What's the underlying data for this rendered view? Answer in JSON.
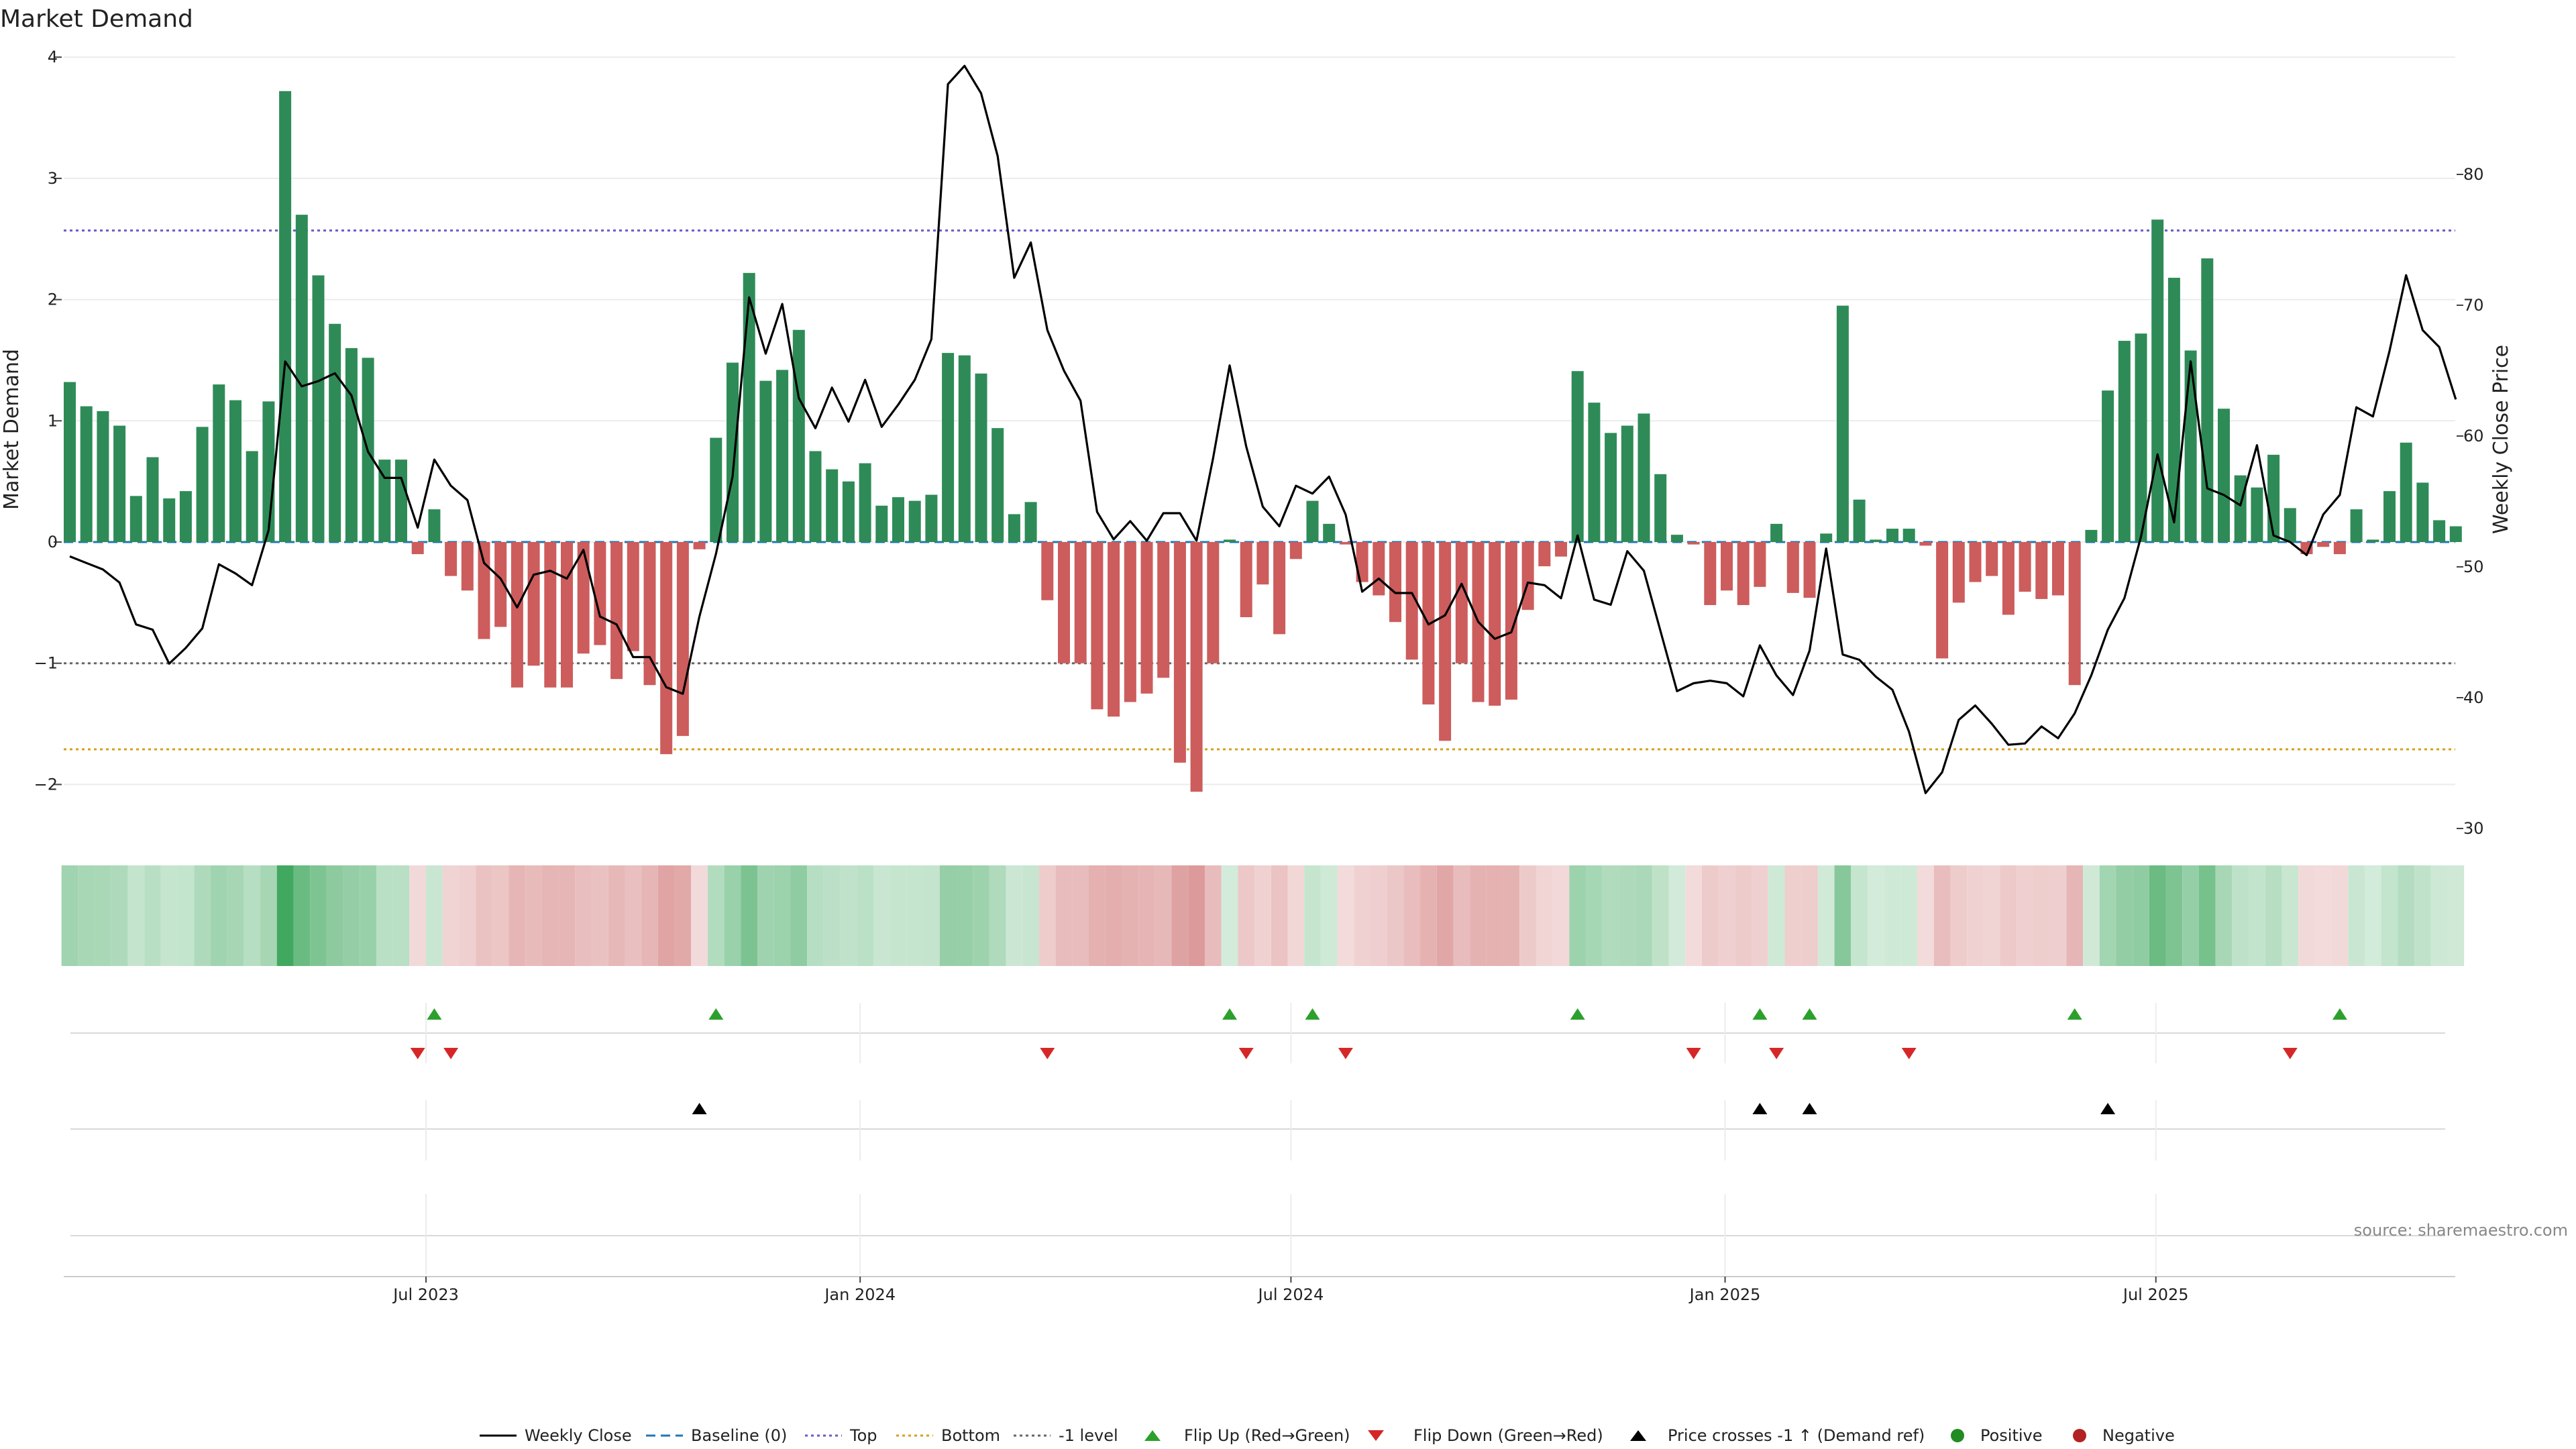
{
  "chart_data": {
    "type": "bar+line",
    "title": "Market Demand",
    "ylabel_left": "Market Demand",
    "ylabel_right": "Weekly Close Price",
    "ylim_left": [
      -2.35,
      4
    ],
    "ylim_right": [
      30,
      89
    ],
    "left_ticks": [
      4,
      3,
      2,
      1,
      0,
      -1,
      -2
    ],
    "left_tick_labels": [
      "4",
      "3",
      "2",
      "1",
      "0",
      "−1",
      "−2"
    ],
    "right_ticks": [
      80,
      70,
      60,
      50,
      40,
      30
    ],
    "right_tick_labels": [
      "80",
      "70",
      "60",
      "50",
      "40",
      "30"
    ],
    "reference_lines": {
      "top": 2.57,
      "bottom": -1.71,
      "minus_one": -1,
      "baseline": 0
    },
    "x_tick_labels": [
      "Jul 2023",
      "Jan 2024",
      "Jul 2024",
      "Jan 2025",
      "Jul 2025"
    ],
    "x_tick_weeks": [
      21.5,
      47.7,
      73.7,
      99.9,
      125.9
    ],
    "demand": [
      1.32,
      1.12,
      1.08,
      0.96,
      0.38,
      0.7,
      0.36,
      0.42,
      0.95,
      1.3,
      1.17,
      0.75,
      1.16,
      3.72,
      2.7,
      2.2,
      1.8,
      1.6,
      1.52,
      0.68,
      0.68,
      -0.1,
      0.27,
      -0.28,
      -0.4,
      -0.8,
      -0.7,
      -1.2,
      -1.02,
      -1.2,
      -1.2,
      -0.92,
      -0.85,
      -1.13,
      -0.9,
      -1.18,
      -1.75,
      -1.6,
      -0.06,
      0.86,
      1.48,
      2.22,
      1.33,
      1.42,
      1.75,
      0.75,
      0.6,
      0.5,
      0.65,
      0.3,
      0.37,
      0.34,
      0.39,
      1.56,
      1.54,
      1.39,
      0.94,
      0.23,
      0.33,
      -0.48,
      -1.0,
      -1.0,
      -1.38,
      -1.44,
      -1.32,
      -1.25,
      -1.12,
      -1.82,
      -2.06,
      -1.0,
      0.02,
      -0.62,
      -0.35,
      -0.76,
      -0.14,
      0.34,
      0.15,
      -0.02,
      -0.33,
      -0.44,
      -0.66,
      -0.97,
      -1.34,
      -1.64,
      -1.0,
      -1.32,
      -1.35,
      -1.3,
      -0.56,
      -0.2,
      -0.12,
      1.41,
      1.15,
      0.9,
      0.96,
      1.06,
      0.56,
      0.06,
      -0.02,
      -0.52,
      -0.4,
      -0.52,
      -0.37,
      0.15,
      -0.42,
      -0.46,
      0.07,
      1.95,
      0.35,
      0.02,
      0.11,
      0.11,
      -0.03,
      -0.96,
      -0.5,
      -0.33,
      -0.28,
      -0.6,
      -0.41,
      -0.47,
      -0.44,
      -1.18,
      0.1,
      1.25,
      1.66,
      1.72,
      2.66,
      2.18,
      1.58,
      2.34,
      1.1,
      0.55,
      0.45,
      0.72,
      0.28,
      -0.1,
      -0.04,
      -0.1,
      0.27,
      0.02,
      0.42,
      0.82,
      0.49,
      0.18,
      0.13
    ],
    "price": [
      50.8,
      50.3,
      49.8,
      48.8,
      45.6,
      45.2,
      42.6,
      43.8,
      45.3,
      50.2,
      49.5,
      48.6,
      52.8,
      65.7,
      63.8,
      64.2,
      64.8,
      63.1,
      58.8,
      56.8,
      56.8,
      53.0,
      58.2,
      56.2,
      55.1,
      50.3,
      49.1,
      46.9,
      49.4,
      49.7,
      49.1,
      51.3,
      46.2,
      45.6,
      43.1,
      43.1,
      40.8,
      40.3,
      46.2,
      51.0,
      56.9,
      70.6,
      66.3,
      70.1,
      62.9,
      60.6,
      63.7,
      61.1,
      64.3,
      60.7,
      62.4,
      64.3,
      67.4,
      86.9,
      88.3,
      86.2,
      81.4,
      72.1,
      74.8,
      68.1,
      65.0,
      62.7,
      54.2,
      52.1,
      53.5,
      52.0,
      54.1,
      54.1,
      52.0,
      58.3,
      65.4,
      59.2,
      54.6,
      53.1,
      56.2,
      55.6,
      56.9,
      54.0,
      48.1,
      49.1,
      48.0,
      48.0,
      45.6,
      46.3,
      48.7,
      45.8,
      44.5,
      45.0,
      48.8,
      48.6,
      47.6,
      52.4,
      47.5,
      47.1,
      51.2,
      49.7,
      45.1,
      40.5,
      41.1,
      41.3,
      41.1,
      40.1,
      44.0,
      41.7,
      40.2,
      43.6,
      51.4,
      43.3,
      42.9,
      41.6,
      40.6,
      37.4,
      32.7,
      34.3,
      38.3,
      39.4,
      38.0,
      36.4,
      36.5,
      37.8,
      36.9,
      38.8,
      41.7,
      45.2,
      47.6,
      52.3,
      58.6,
      53.4,
      65.7,
      56.0,
      55.5,
      54.7,
      59.3,
      52.4,
      51.9,
      50.9,
      54.0,
      55.5,
      62.2,
      61.5,
      66.5,
      72.3,
      68.1,
      66.8,
      62.8
    ],
    "flip_up_weeks": [
      22,
      39,
      70,
      75,
      91,
      102,
      105,
      121,
      137
    ],
    "flip_down_weeks": [
      21,
      23,
      59,
      71,
      77,
      98,
      103,
      111,
      134
    ],
    "price_cross_weeks": [
      38,
      102,
      105,
      123
    ],
    "colors": {
      "positive": "#2e8b57",
      "negative": "#cd5c5c",
      "price_line": "#000000",
      "baseline": "#1f77b4",
      "top": "#6a5acd",
      "bottom": "#d4a017",
      "minus_one": "#666666",
      "flip_up": "#2ca02c",
      "flip_down": "#d62728",
      "price_cross": "#000000",
      "positive_dot": "#228b22",
      "negative_dot": "#b22222"
    }
  },
  "legend": {
    "weekly_close": "Weekly Close",
    "baseline": "Baseline (0)",
    "top": "Top",
    "bottom": "Bottom",
    "minus_one": "-1 level",
    "flip_up": "Flip Up (Red→Green)",
    "flip_down": "Flip Down (Green→Red)",
    "price_cross": "Price crosses -1 ↑ (Demand ref)",
    "positive": "Positive",
    "negative": "Negative"
  },
  "source": "source: sharemaestro.com"
}
